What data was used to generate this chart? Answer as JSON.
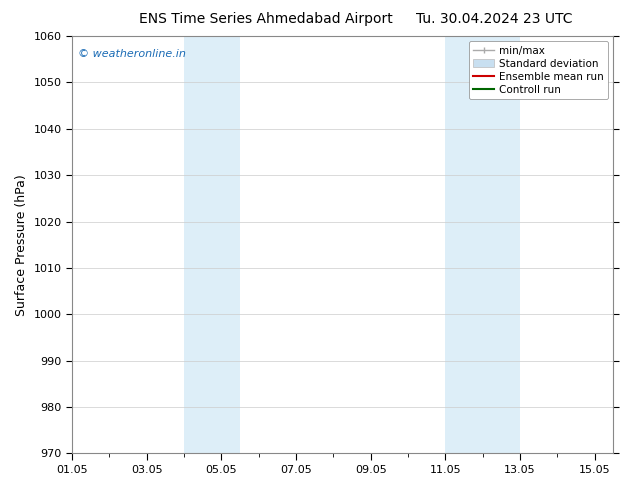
{
  "title_left": "ENS Time Series Ahmedabad Airport",
  "title_right": "Tu. 30.04.2024 23 UTC",
  "ylabel": "Surface Pressure (hPa)",
  "ylim": [
    970,
    1060
  ],
  "yticks": [
    970,
    980,
    990,
    1000,
    1010,
    1020,
    1030,
    1040,
    1050,
    1060
  ],
  "xlim_start": 1.0,
  "xlim_end": 15.5,
  "xtick_labels": [
    "01.05",
    "03.05",
    "05.05",
    "07.05",
    "09.05",
    "11.05",
    "13.05",
    "15.05"
  ],
  "xtick_positions": [
    1.0,
    3.0,
    5.0,
    7.0,
    9.0,
    11.0,
    13.0,
    15.0
  ],
  "shaded_bands": [
    {
      "x_start": 4.0,
      "x_end": 4.5,
      "color": "#ddeef8"
    },
    {
      "x_start": 4.5,
      "x_end": 5.5,
      "color": "#ddeef8"
    },
    {
      "x_start": 11.0,
      "x_end": 12.0,
      "color": "#ddeef8"
    },
    {
      "x_start": 12.0,
      "x_end": 13.0,
      "color": "#ddeef8"
    }
  ],
  "watermark_text": "© weatheronline.in",
  "watermark_color": "#1a6bb5",
  "legend_items": [
    {
      "label": "min/max",
      "color": "#aaaaaa",
      "type": "line_with_caps"
    },
    {
      "label": "Standard deviation",
      "color": "#c8dff0",
      "type": "filled_box"
    },
    {
      "label": "Ensemble mean run",
      "color": "#cc0000",
      "type": "line"
    },
    {
      "label": "Controll run",
      "color": "#006600",
      "type": "line"
    }
  ],
  "bg_color": "#ffffff",
  "plot_bg_color": "#ffffff",
  "grid_color": "#cccccc",
  "tick_label_fontsize": 8,
  "axis_label_fontsize": 9,
  "title_fontsize": 10,
  "legend_fontsize": 7.5
}
